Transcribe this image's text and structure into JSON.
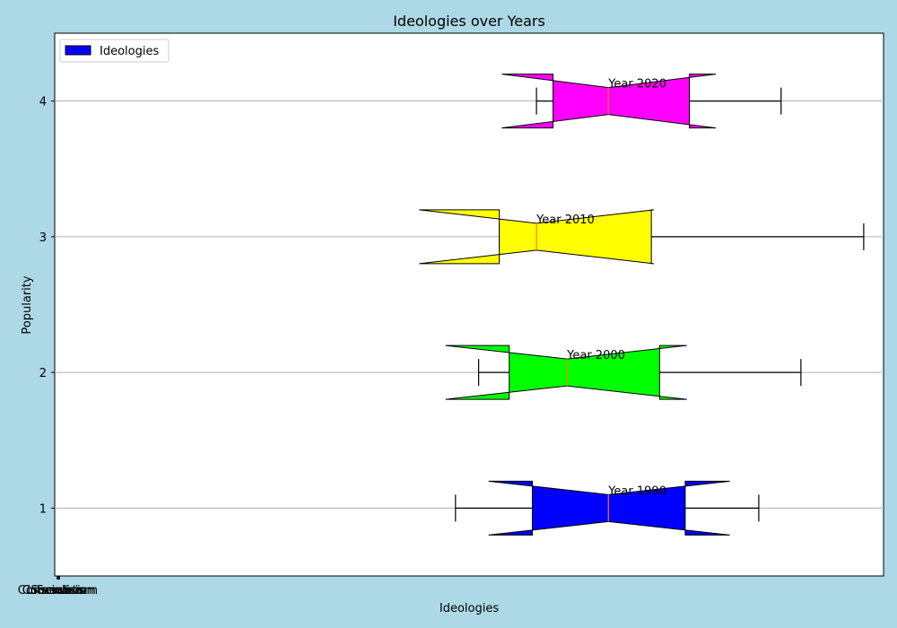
{
  "chart_data": {
    "type": "boxplot",
    "orientation": "horizontal",
    "notched": true,
    "title": "Ideologies over Years",
    "xlabel": "Ideologies",
    "ylabel": "Popularity",
    "y_ticks": [
      "1",
      "2",
      "3",
      "4"
    ],
    "x_tick_labels": [
      "Liberalism",
      "Conservatism",
      "Socialism",
      "Communism",
      "Fascism"
    ],
    "xlim": [
      -0.3,
      100
    ],
    "ylim": [
      0.5,
      4.5
    ],
    "grid": "y",
    "legend": {
      "label": "Ideologies",
      "location": "top-left",
      "swatch_color": "#0000ff"
    },
    "boxes": [
      {
        "position": 1,
        "label": "Year 1990",
        "color": "#0000ff",
        "whisker_low": 48.2,
        "q1": 57.5,
        "median": 66.7,
        "q3": 76.0,
        "whisker_high": 84.9,
        "notch_low": 52.2,
        "notch_high": 81.4
      },
      {
        "position": 2,
        "label": "Year 2000",
        "color": "#00ff00",
        "whisker_low": 51.0,
        "q1": 54.7,
        "median": 61.7,
        "q3": 72.9,
        "whisker_high": 90.0,
        "notch_low": 47.0,
        "notch_high": 76.2
      },
      {
        "position": 3,
        "label": "Year 2010",
        "color": "#ffff00",
        "whisker_low": 53.5,
        "q1": 53.5,
        "median": 58.0,
        "q3": 71.9,
        "whisker_high": 97.6,
        "notch_low": 43.8,
        "notch_high": 72.2
      },
      {
        "position": 4,
        "label": "Year 2020",
        "color": "#ff00ff",
        "whisker_low": 58.0,
        "q1": 60.0,
        "median": 66.7,
        "q3": 76.5,
        "whisker_high": 87.6,
        "notch_low": 53.8,
        "notch_high": 79.7
      }
    ]
  }
}
